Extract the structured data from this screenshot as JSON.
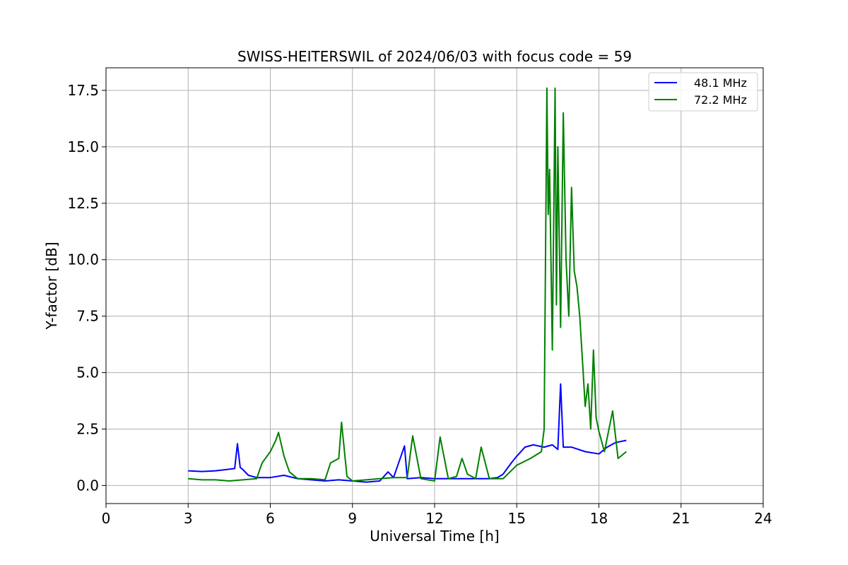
{
  "chart_data": {
    "type": "line",
    "title": "SWISS-HEITERSWIL of 2024/06/03 with focus code = 59",
    "xlabel": "Universal Time [h]",
    "ylabel": "Y-factor [dB]",
    "xlim": [
      0,
      24
    ],
    "ylim": [
      -0.8,
      18.5
    ],
    "x_ticks": [
      "0",
      "3",
      "6",
      "9",
      "12",
      "15",
      "18",
      "21",
      "24"
    ],
    "y_ticks": [
      "0.0",
      "2.5",
      "5.0",
      "7.5",
      "10.0",
      "12.5",
      "15.0",
      "17.5"
    ],
    "grid": true,
    "legend_position": "top-right",
    "series": [
      {
        "name": "48.1 MHz",
        "color": "#0000ff",
        "x": [
          3.0,
          3.5,
          4.0,
          4.5,
          4.7,
          4.8,
          4.9,
          5.0,
          5.2,
          5.5,
          6.0,
          6.5,
          7.0,
          7.5,
          8.0,
          8.5,
          9.0,
          9.5,
          10.0,
          10.3,
          10.5,
          10.9,
          11.0,
          11.5,
          12.0,
          12.5,
          13.0,
          13.5,
          14.0,
          14.3,
          14.5,
          14.8,
          15.0,
          15.3,
          15.6,
          16.0,
          16.3,
          16.5,
          16.6,
          16.7,
          17.0,
          17.5,
          18.0,
          18.3,
          18.6,
          19.0
        ],
        "y": [
          0.65,
          0.62,
          0.65,
          0.72,
          0.75,
          1.85,
          0.8,
          0.7,
          0.45,
          0.35,
          0.35,
          0.45,
          0.3,
          0.25,
          0.2,
          0.25,
          0.2,
          0.15,
          0.2,
          0.6,
          0.35,
          1.75,
          0.3,
          0.35,
          0.3,
          0.3,
          0.3,
          0.3,
          0.3,
          0.35,
          0.5,
          1.0,
          1.3,
          1.7,
          1.8,
          1.7,
          1.8,
          1.6,
          4.5,
          1.7,
          1.7,
          1.5,
          1.4,
          1.7,
          1.9,
          2.0
        ]
      },
      {
        "name": "72.2 MHz",
        "color": "#008000",
        "x": [
          3.0,
          3.5,
          4.0,
          4.5,
          5.0,
          5.5,
          5.7,
          6.0,
          6.2,
          6.3,
          6.5,
          6.7,
          7.0,
          7.5,
          8.0,
          8.2,
          8.5,
          8.6,
          8.8,
          9.0,
          9.5,
          10.0,
          10.5,
          11.0,
          11.2,
          11.5,
          12.0,
          12.2,
          12.5,
          12.8,
          13.0,
          13.2,
          13.5,
          13.7,
          14.0,
          14.3,
          14.5,
          15.0,
          15.5,
          15.9,
          16.0,
          16.1,
          16.15,
          16.2,
          16.3,
          16.4,
          16.45,
          16.5,
          16.6,
          16.7,
          16.8,
          16.9,
          17.0,
          17.1,
          17.2,
          17.3,
          17.4,
          17.5,
          17.6,
          17.7,
          17.8,
          17.9,
          18.0,
          18.2,
          18.5,
          18.7,
          19.0
        ],
        "y": [
          0.3,
          0.25,
          0.25,
          0.2,
          0.25,
          0.3,
          1.0,
          1.5,
          2.0,
          2.35,
          1.3,
          0.6,
          0.3,
          0.3,
          0.25,
          1.0,
          1.2,
          2.8,
          0.4,
          0.2,
          0.25,
          0.3,
          0.35,
          0.35,
          2.2,
          0.3,
          0.2,
          2.15,
          0.3,
          0.4,
          1.2,
          0.5,
          0.3,
          1.7,
          0.3,
          0.3,
          0.3,
          0.9,
          1.2,
          1.5,
          2.5,
          17.6,
          12.0,
          14.0,
          6.0,
          17.6,
          8.0,
          15.0,
          7.0,
          16.5,
          10.0,
          7.5,
          13.2,
          9.5,
          8.8,
          7.5,
          5.5,
          3.5,
          4.5,
          2.5,
          6.0,
          3.0,
          2.4,
          1.5,
          3.3,
          1.2,
          1.5
        ]
      }
    ]
  }
}
